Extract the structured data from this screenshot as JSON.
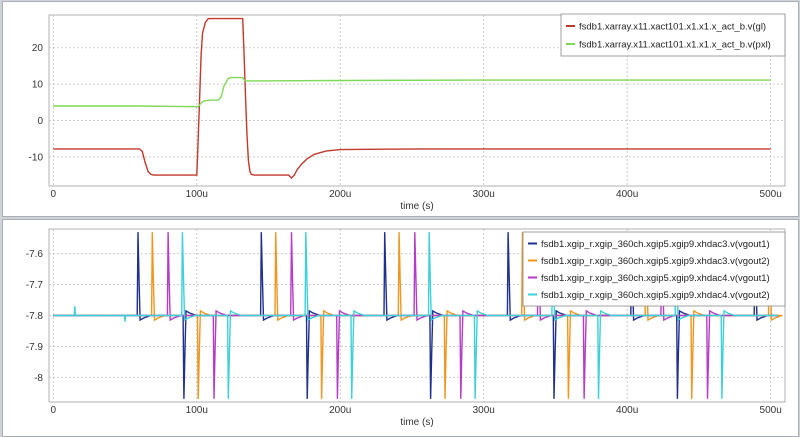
{
  "chart_data": [
    {
      "type": "line",
      "xlabel": "time (s)",
      "ylabel": "",
      "xlim": [
        -3,
        510
      ],
      "ylim": [
        -18,
        29
      ],
      "grid": true,
      "legend_placement": "top-right",
      "xticks": [
        0,
        100,
        200,
        300,
        400,
        500
      ],
      "xtick_labels": [
        "0",
        "100u",
        "200u",
        "300u",
        "400u",
        "500u"
      ],
      "yticks": [
        -10,
        0,
        10,
        20
      ],
      "ytick_labels": [
        "-10",
        "0",
        "10",
        "20"
      ],
      "series": [
        {
          "name": "fsdb1.xarray.x11.xact101.x1.x1.x_act_b.v(gl)",
          "color": "#c0392b",
          "x": [
            0,
            60,
            62,
            64,
            66,
            68,
            70,
            100,
            101,
            102,
            103,
            104,
            106,
            108,
            110,
            132,
            133,
            134,
            135,
            136,
            137,
            138,
            140,
            145,
            155,
            164,
            166,
            168,
            170,
            173,
            177,
            182,
            190,
            200,
            220,
            260,
            350,
            500
          ],
          "y": [
            -7.8,
            -7.8,
            -8.5,
            -11.5,
            -14.0,
            -14.8,
            -15.0,
            -15.0,
            -5.0,
            6.0,
            18.0,
            24.0,
            27.0,
            28.0,
            28.0,
            28.0,
            18.0,
            6.0,
            -4.0,
            -11.0,
            -14.0,
            -14.8,
            -15.0,
            -15.0,
            -15.0,
            -15.0,
            -15.8,
            -15.0,
            -13.5,
            -12.0,
            -10.5,
            -9.3,
            -8.4,
            -8.0,
            -7.9,
            -7.8,
            -7.8,
            -7.8
          ]
        },
        {
          "name": "fsdb1.xarray.x11.xact101.x1.x1.x_act_b.v(pxl)",
          "color": "#7ed957",
          "x": [
            0,
            60,
            100,
            101,
            103,
            105,
            110,
            115,
            117,
            119,
            122,
            124,
            132,
            133,
            134,
            140,
            200,
            300,
            400,
            500
          ],
          "y": [
            4.0,
            4.0,
            3.8,
            3.8,
            4.8,
            5.4,
            5.6,
            5.6,
            6.5,
            9.5,
            11.6,
            11.8,
            11.8,
            11.2,
            10.9,
            10.9,
            11.0,
            11.1,
            11.1,
            11.1
          ]
        }
      ]
    },
    {
      "type": "line",
      "xlabel": "time (s)",
      "ylabel": "",
      "xlim": [
        -3,
        510
      ],
      "ylim": [
        -8.08,
        -7.52
      ],
      "grid": true,
      "legend_placement": "top-right",
      "xticks": [
        0,
        100,
        200,
        300,
        400,
        500
      ],
      "xtick_labels": [
        "0",
        "100u",
        "200u",
        "300u",
        "400u",
        "500u"
      ],
      "yticks": [
        -7.6,
        -7.7,
        -7.8,
        -7.9,
        -8.0
      ],
      "ytick_labels": [
        "-7.6",
        "-7.7",
        "-7.8",
        "-7.9",
        "-8"
      ],
      "period": 86,
      "series": [
        {
          "name": "fsdb1.xgip_r.xgip_360ch.xgip5.xgip9.xhdac3.v(vgout1)",
          "color": "#1f2f8f",
          "pos_spike_times": [
            59,
            145,
            231,
            317,
            403,
            489
          ],
          "neg_spike_times": [
            91,
            177,
            263,
            349,
            435
          ],
          "spike_high": -7.53,
          "spike_low": -8.07,
          "baseline": -7.8
        },
        {
          "name": "fsdb1.xgip_r.xgip_360ch.xgip5.xgip9.xhdac3.v(vgout2)",
          "color": "#f0961e",
          "pos_spike_times": [
            69,
            155,
            241,
            327,
            413,
            499
          ],
          "neg_spike_times": [
            101,
            187,
            273,
            359,
            445
          ],
          "spike_high": -7.53,
          "spike_low": -8.07,
          "baseline": -7.8
        },
        {
          "name": "fsdb1.xgip_r.xgip_360ch.xgip5.xgip9.xhdac4.v(vgout1)",
          "color": "#b43cc8",
          "pos_spike_times": [
            80,
            166,
            252,
            338,
            424
          ],
          "neg_spike_times": [
            112,
            198,
            284,
            370,
            456
          ],
          "spike_high": -7.53,
          "spike_low": -8.07,
          "baseline": -7.8
        },
        {
          "name": "fsdb1.xgip_r.xgip_360ch.xgip5.xgip9.xhdac4.v(vgout2)",
          "color": "#3ed0d8",
          "pos_spike_times": [
            90,
            176,
            262,
            348,
            434
          ],
          "neg_spike_times": [
            122,
            208,
            294,
            380,
            466
          ],
          "spike_high": -7.53,
          "spike_low": -8.07,
          "baseline": -7.8,
          "startup_glitches": [
            {
              "x": 15,
              "y": -7.77
            },
            {
              "x": 50,
              "y": -7.82
            }
          ]
        }
      ]
    }
  ]
}
